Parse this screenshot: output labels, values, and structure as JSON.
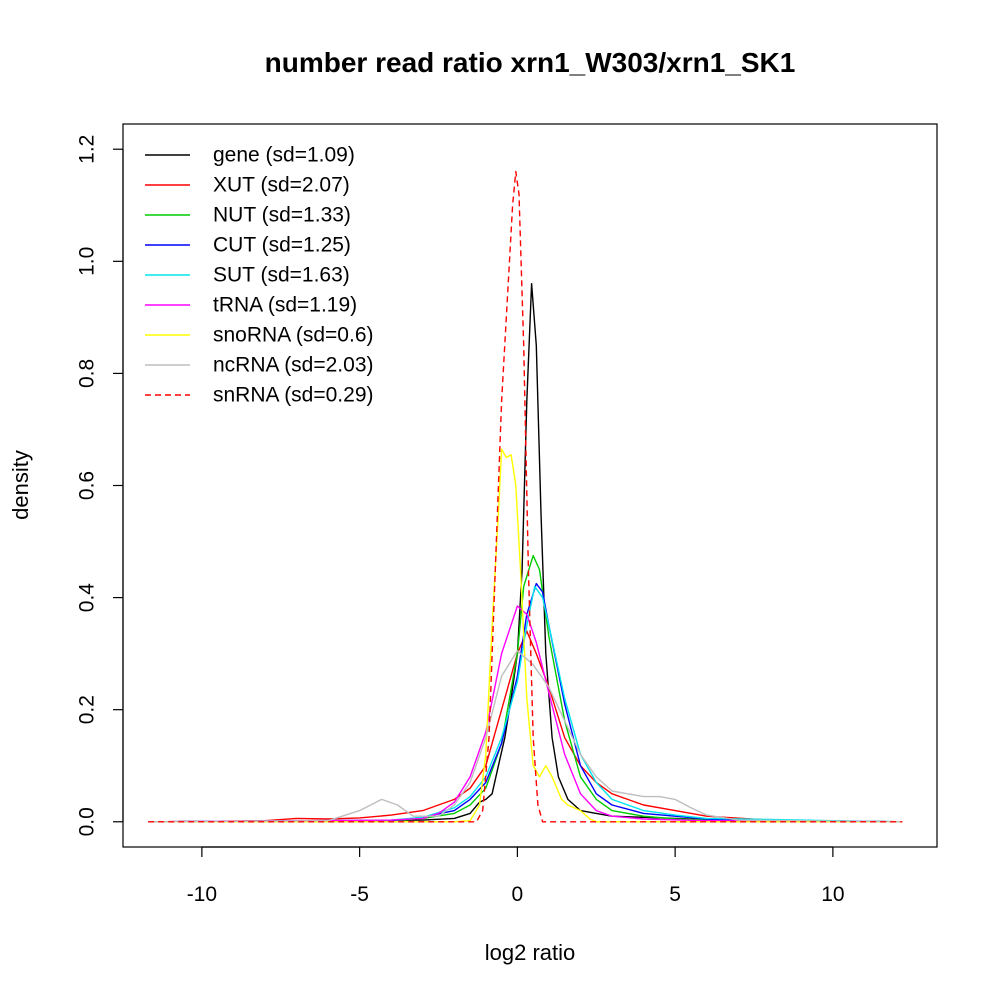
{
  "chart_data": {
    "type": "line",
    "title": "number read ratio xrn1_W303/xrn1_SK1",
    "xlabel": "log2 ratio",
    "ylabel": "density",
    "xlim": [
      -12.5,
      13.3
    ],
    "ylim": [
      -0.045,
      1.245
    ],
    "xticks": [
      -10,
      -5,
      0,
      5,
      10
    ],
    "yticks": [
      0.0,
      0.2,
      0.4,
      0.6,
      0.8,
      1.0,
      1.2
    ],
    "xtick_labels": [
      "-10",
      "-5",
      "0",
      "5",
      "10"
    ],
    "ytick_labels": [
      "0.0",
      "0.2",
      "0.4",
      "0.6",
      "0.8",
      "1.0",
      "1.2"
    ],
    "grid": false,
    "legend_position": "top-left",
    "series": [
      {
        "name": "gene (sd=1.09)",
        "color": "#000000",
        "dash": false,
        "points": [
          [
            -11.7,
            0
          ],
          [
            -3,
            0.003
          ],
          [
            -2,
            0.006
          ],
          [
            -1.5,
            0.015
          ],
          [
            -1.2,
            0.035
          ],
          [
            -1.0,
            0.04
          ],
          [
            -0.8,
            0.05
          ],
          [
            -0.6,
            0.1
          ],
          [
            -0.4,
            0.15
          ],
          [
            -0.2,
            0.22
          ],
          [
            0.0,
            0.3
          ],
          [
            0.15,
            0.45
          ],
          [
            0.3,
            0.75
          ],
          [
            0.45,
            0.96
          ],
          [
            0.6,
            0.85
          ],
          [
            0.75,
            0.55
          ],
          [
            0.9,
            0.3
          ],
          [
            1.1,
            0.15
          ],
          [
            1.3,
            0.08
          ],
          [
            1.6,
            0.04
          ],
          [
            2.0,
            0.02
          ],
          [
            2.5,
            0.015
          ],
          [
            3.0,
            0.01
          ],
          [
            4.0,
            0.008
          ],
          [
            5.0,
            0.006
          ],
          [
            6.0,
            0.004
          ],
          [
            8.0,
            0.002
          ],
          [
            12.2,
            0
          ]
        ]
      },
      {
        "name": "XUT (sd=2.07)",
        "color": "#ff0000",
        "dash": false,
        "points": [
          [
            -11.7,
            0
          ],
          [
            -8.0,
            0.002
          ],
          [
            -7.0,
            0.006
          ],
          [
            -6.0,
            0.005
          ],
          [
            -5.0,
            0.007
          ],
          [
            -4.0,
            0.012
          ],
          [
            -3.0,
            0.02
          ],
          [
            -2.0,
            0.04
          ],
          [
            -1.5,
            0.06
          ],
          [
            -1.0,
            0.1
          ],
          [
            -0.5,
            0.2
          ],
          [
            0.0,
            0.3
          ],
          [
            0.3,
            0.34
          ],
          [
            0.6,
            0.3
          ],
          [
            1.0,
            0.24
          ],
          [
            1.5,
            0.15
          ],
          [
            2.0,
            0.1
          ],
          [
            2.5,
            0.07
          ],
          [
            3.0,
            0.05
          ],
          [
            4.0,
            0.03
          ],
          [
            5.0,
            0.02
          ],
          [
            6.0,
            0.01
          ],
          [
            8.0,
            0.003
          ],
          [
            12.2,
            0
          ]
        ]
      },
      {
        "name": "NUT (sd=1.33)",
        "color": "#00cc00",
        "dash": false,
        "points": [
          [
            -11.7,
            0
          ],
          [
            -4.0,
            0.002
          ],
          [
            -3.0,
            0.006
          ],
          [
            -2.0,
            0.015
          ],
          [
            -1.5,
            0.03
          ],
          [
            -1.0,
            0.06
          ],
          [
            -0.5,
            0.14
          ],
          [
            0.0,
            0.3
          ],
          [
            0.2,
            0.42
          ],
          [
            0.5,
            0.475
          ],
          [
            0.7,
            0.45
          ],
          [
            1.0,
            0.33
          ],
          [
            1.5,
            0.18
          ],
          [
            2.0,
            0.08
          ],
          [
            2.5,
            0.04
          ],
          [
            3.0,
            0.02
          ],
          [
            4.0,
            0.01
          ],
          [
            5.0,
            0.005
          ],
          [
            7.0,
            0.002
          ],
          [
            12.2,
            0
          ]
        ]
      },
      {
        "name": "CUT (sd=1.25)",
        "color": "#0000ff",
        "dash": false,
        "points": [
          [
            -11.7,
            0
          ],
          [
            -4.0,
            0.002
          ],
          [
            -3.0,
            0.008
          ],
          [
            -2.0,
            0.02
          ],
          [
            -1.5,
            0.04
          ],
          [
            -1.0,
            0.07
          ],
          [
            -0.5,
            0.14
          ],
          [
            0.0,
            0.26
          ],
          [
            0.3,
            0.37
          ],
          [
            0.6,
            0.425
          ],
          [
            0.8,
            0.41
          ],
          [
            1.0,
            0.35
          ],
          [
            1.5,
            0.21
          ],
          [
            2.0,
            0.1
          ],
          [
            2.5,
            0.05
          ],
          [
            3.0,
            0.03
          ],
          [
            4.0,
            0.015
          ],
          [
            5.0,
            0.01
          ],
          [
            6.0,
            0.005
          ],
          [
            7.0,
            0.002
          ],
          [
            12.2,
            0
          ]
        ]
      },
      {
        "name": "SUT (sd=1.63)",
        "color": "#00e5ee",
        "dash": false,
        "points": [
          [
            -11.7,
            0
          ],
          [
            -4.0,
            0.003
          ],
          [
            -3.0,
            0.008
          ],
          [
            -2.0,
            0.025
          ],
          [
            -1.5,
            0.045
          ],
          [
            -1.0,
            0.08
          ],
          [
            -0.5,
            0.15
          ],
          [
            0.0,
            0.25
          ],
          [
            0.3,
            0.35
          ],
          [
            0.55,
            0.42
          ],
          [
            0.8,
            0.4
          ],
          [
            1.0,
            0.35
          ],
          [
            1.5,
            0.22
          ],
          [
            2.0,
            0.12
          ],
          [
            2.5,
            0.07
          ],
          [
            3.0,
            0.04
          ],
          [
            4.0,
            0.02
          ],
          [
            5.0,
            0.012
          ],
          [
            6.0,
            0.006
          ],
          [
            8.0,
            0.004
          ],
          [
            10.0,
            0.002
          ],
          [
            12.2,
            0
          ]
        ]
      },
      {
        "name": "tRNA (sd=1.19)",
        "color": "#ff00ff",
        "dash": false,
        "points": [
          [
            -11.7,
            0
          ],
          [
            -4.0,
            0.003
          ],
          [
            -3.0,
            0.006
          ],
          [
            -2.5,
            0.015
          ],
          [
            -2.0,
            0.035
          ],
          [
            -1.5,
            0.08
          ],
          [
            -1.0,
            0.16
          ],
          [
            -0.5,
            0.3
          ],
          [
            0.0,
            0.385
          ],
          [
            0.3,
            0.37
          ],
          [
            0.6,
            0.32
          ],
          [
            1.0,
            0.23
          ],
          [
            1.5,
            0.12
          ],
          [
            2.0,
            0.05
          ],
          [
            2.5,
            0.02
          ],
          [
            3.0,
            0.01
          ],
          [
            4.0,
            0.005
          ],
          [
            6.0,
            0.002
          ],
          [
            12.2,
            0
          ]
        ]
      },
      {
        "name": "snoRNA (sd=0.6)",
        "color": "#ffff00",
        "dash": false,
        "points": [
          [
            -11.7,
            0
          ],
          [
            -2.0,
            0
          ],
          [
            -1.5,
            0.002
          ],
          [
            -1.2,
            0.03
          ],
          [
            -1.0,
            0.12
          ],
          [
            -0.8,
            0.35
          ],
          [
            -0.6,
            0.55
          ],
          [
            -0.5,
            0.665
          ],
          [
            -0.35,
            0.65
          ],
          [
            -0.2,
            0.655
          ],
          [
            -0.05,
            0.6
          ],
          [
            0.1,
            0.45
          ],
          [
            0.3,
            0.22
          ],
          [
            0.5,
            0.1
          ],
          [
            0.7,
            0.08
          ],
          [
            0.9,
            0.1
          ],
          [
            1.1,
            0.08
          ],
          [
            1.4,
            0.04
          ],
          [
            1.6,
            0.03
          ],
          [
            2.0,
            0.02
          ],
          [
            2.3,
            0.005
          ],
          [
            2.5,
            0
          ],
          [
            12.2,
            0
          ]
        ]
      },
      {
        "name": "ncRNA (sd=2.03)",
        "color": "#bebebe",
        "dash": false,
        "points": [
          [
            -11.7,
            0
          ],
          [
            -6.0,
            0.002
          ],
          [
            -5.0,
            0.02
          ],
          [
            -4.3,
            0.04
          ],
          [
            -3.8,
            0.03
          ],
          [
            -3.3,
            0.01
          ],
          [
            -2.5,
            0.01
          ],
          [
            -2.0,
            0.03
          ],
          [
            -1.5,
            0.07
          ],
          [
            -1.0,
            0.15
          ],
          [
            -0.5,
            0.26
          ],
          [
            0.0,
            0.305
          ],
          [
            0.5,
            0.28
          ],
          [
            1.0,
            0.24
          ],
          [
            1.5,
            0.18
          ],
          [
            2.0,
            0.12
          ],
          [
            2.5,
            0.08
          ],
          [
            3.0,
            0.055
          ],
          [
            3.5,
            0.05
          ],
          [
            4.0,
            0.045
          ],
          [
            4.5,
            0.045
          ],
          [
            5.0,
            0.04
          ],
          [
            5.5,
            0.025
          ],
          [
            6.0,
            0.012
          ],
          [
            7.0,
            0.003
          ],
          [
            12.2,
            0
          ]
        ]
      },
      {
        "name": "snRNA (sd=0.29)",
        "color": "#ff0000",
        "dash": true,
        "points": [
          [
            -11.7,
            0
          ],
          [
            -1.3,
            0
          ],
          [
            -1.1,
            0.02
          ],
          [
            -0.9,
            0.15
          ],
          [
            -0.7,
            0.45
          ],
          [
            -0.5,
            0.75
          ],
          [
            -0.3,
            0.95
          ],
          [
            -0.15,
            1.1
          ],
          [
            -0.05,
            1.16
          ],
          [
            0.05,
            1.12
          ],
          [
            0.2,
            0.85
          ],
          [
            0.35,
            0.45
          ],
          [
            0.5,
            0.15
          ],
          [
            0.65,
            0.03
          ],
          [
            0.8,
            0
          ],
          [
            12.2,
            0
          ]
        ]
      }
    ]
  }
}
